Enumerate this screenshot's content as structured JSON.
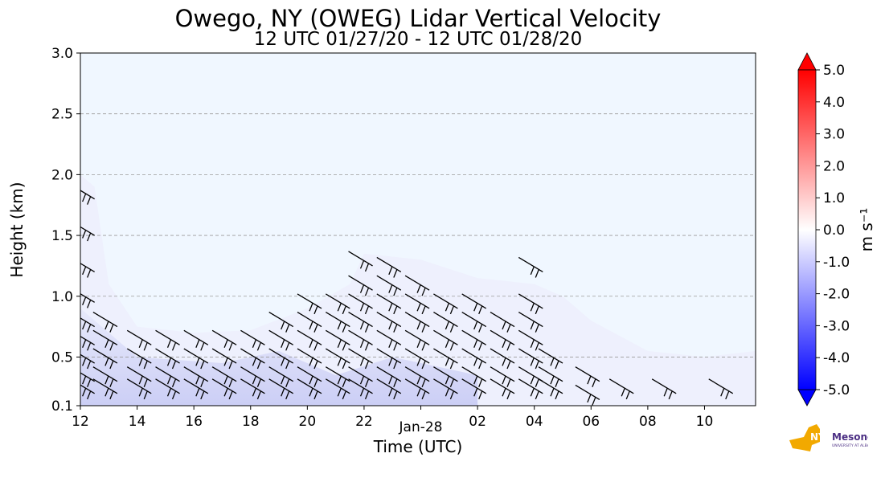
{
  "chart_data": {
    "type": "heatmap",
    "title": "Owego, NY (OWEG) Lidar Vertical Velocity",
    "subtitle": "12 UTC 01/27/20 - 12 UTC 01/28/20",
    "xlabel": "Time (UTC)",
    "ylabel": "Height (km)",
    "x_tick_labels": [
      "12",
      "14",
      "16",
      "18",
      "20",
      "22",
      "Jan-28",
      "02",
      "04",
      "06",
      "08",
      "10"
    ],
    "x_tick_hours": [
      12,
      14,
      16,
      18,
      20,
      22,
      24,
      26,
      28,
      30,
      32,
      34
    ],
    "xlim_hours": [
      12,
      35.8
    ],
    "y_tick_labels": [
      "0.1",
      "0.5",
      "1.0",
      "1.5",
      "2.0",
      "2.5",
      "3.0"
    ],
    "y_ticks": [
      0.1,
      0.5,
      1.0,
      1.5,
      2.0,
      2.5,
      3.0
    ],
    "ylim": [
      0.1,
      3.0
    ],
    "grid": "horizontal dashed",
    "colorbar": {
      "label": "m s⁻¹",
      "min": -5.0,
      "max": 5.0,
      "tick_labels": [
        "5.0",
        "4.0",
        "3.0",
        "2.0",
        "1.0",
        "0.0",
        "-1.0",
        "-2.0",
        "-3.0",
        "-4.0",
        "-5.0"
      ],
      "tick_values": [
        5,
        4,
        3,
        2,
        1,
        0,
        -1,
        -2,
        -3,
        -4,
        -5
      ],
      "colors": {
        "max": "#ff0000",
        "zero": "#ffffff",
        "min": "#0000ff"
      }
    },
    "background_value_color": "#f0f7ff",
    "data_top_height_km": [
      {
        "x": 12.0,
        "y": 2.0
      },
      {
        "x": 12.5,
        "y": 1.9
      },
      {
        "x": 13.0,
        "y": 1.1
      },
      {
        "x": 14.0,
        "y": 0.75
      },
      {
        "x": 16.0,
        "y": 0.7
      },
      {
        "x": 18.0,
        "y": 0.72
      },
      {
        "x": 20.0,
        "y": 0.9
      },
      {
        "x": 21.5,
        "y": 1.1
      },
      {
        "x": 22.0,
        "y": 1.35
      },
      {
        "x": 24.0,
        "y": 1.3
      },
      {
        "x": 26.0,
        "y": 1.15
      },
      {
        "x": 28.0,
        "y": 1.1
      },
      {
        "x": 29.0,
        "y": 1.0
      },
      {
        "x": 30.0,
        "y": 0.8
      },
      {
        "x": 32.0,
        "y": 0.55
      },
      {
        "x": 34.0,
        "y": 0.5
      },
      {
        "x": 35.8,
        "y": 0.55
      }
    ],
    "wind_barb_columns": [
      {
        "x": 12.5,
        "heights": [
          0.2,
          0.3,
          0.45,
          0.6,
          0.75,
          0.95,
          1.2,
          1.5,
          1.8
        ]
      },
      {
        "x": 13.3,
        "heights": [
          0.2,
          0.3,
          0.45,
          0.6,
          0.75
        ]
      },
      {
        "x": 14.5,
        "heights": [
          0.2,
          0.3,
          0.45,
          0.6
        ]
      },
      {
        "x": 15.5,
        "heights": [
          0.2,
          0.3,
          0.45,
          0.6
        ]
      },
      {
        "x": 16.5,
        "heights": [
          0.2,
          0.3,
          0.45,
          0.6
        ]
      },
      {
        "x": 17.5,
        "heights": [
          0.2,
          0.3,
          0.45,
          0.6
        ]
      },
      {
        "x": 18.5,
        "heights": [
          0.2,
          0.3,
          0.45,
          0.6
        ]
      },
      {
        "x": 19.5,
        "heights": [
          0.2,
          0.3,
          0.45,
          0.6,
          0.75
        ]
      },
      {
        "x": 20.5,
        "heights": [
          0.2,
          0.3,
          0.45,
          0.6,
          0.75,
          0.9
        ]
      },
      {
        "x": 21.5,
        "heights": [
          0.2,
          0.3,
          0.45,
          0.6,
          0.75,
          0.9
        ]
      },
      {
        "x": 22.3,
        "heights": [
          0.2,
          0.3,
          0.45,
          0.6,
          0.75,
          0.9,
          1.05,
          1.25
        ]
      },
      {
        "x": 23.3,
        "heights": [
          0.2,
          0.3,
          0.45,
          0.6,
          0.75,
          0.9,
          1.05,
          1.2
        ]
      },
      {
        "x": 24.3,
        "heights": [
          0.2,
          0.3,
          0.45,
          0.6,
          0.75,
          0.9,
          1.05
        ]
      },
      {
        "x": 25.3,
        "heights": [
          0.2,
          0.3,
          0.45,
          0.6,
          0.75,
          0.9
        ]
      },
      {
        "x": 26.3,
        "heights": [
          0.2,
          0.3,
          0.45,
          0.6,
          0.75,
          0.9
        ]
      },
      {
        "x": 27.3,
        "heights": [
          0.2,
          0.3,
          0.45,
          0.6,
          0.75
        ]
      },
      {
        "x": 28.3,
        "heights": [
          0.2,
          0.3,
          0.45,
          0.6,
          0.75,
          0.9,
          1.2
        ]
      },
      {
        "x": 29.0,
        "heights": [
          0.2,
          0.3,
          0.45
        ]
      },
      {
        "x": 30.3,
        "heights": [
          0.15,
          0.3
        ]
      },
      {
        "x": 31.5,
        "heights": [
          0.2
        ]
      },
      {
        "x": 33.0,
        "heights": [
          0.2
        ]
      },
      {
        "x": 35.0,
        "heights": [
          0.2
        ]
      }
    ]
  },
  "logo": {
    "text": "NYS Mesonet",
    "subtext": "UNIVERSITY AT ALBANY"
  }
}
